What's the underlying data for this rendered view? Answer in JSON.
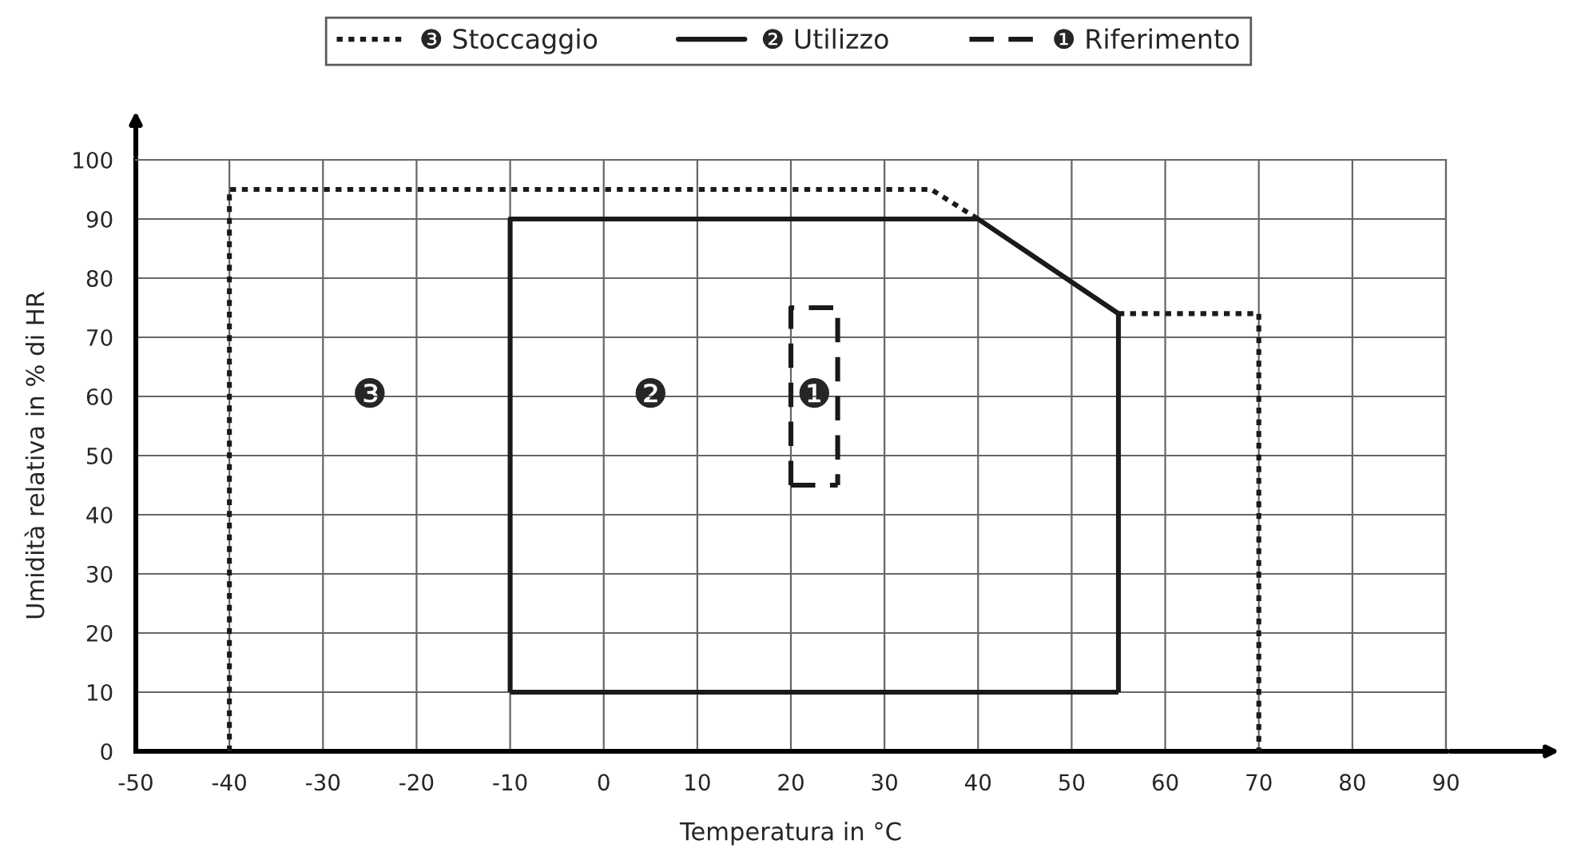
{
  "chart_data": {
    "type": "line",
    "xlabel": "Temperatura in °C",
    "ylabel": "Umidità relativa in % di HR",
    "series": [
      {
        "name": "❸ Stoccaggio",
        "color": "#1a1a1a",
        "line_style": "dotted",
        "x": [
          -40,
          -40,
          35,
          40,
          null,
          55,
          70,
          70
        ],
        "values": [
          0,
          95,
          95,
          90,
          null,
          74,
          74,
          0
        ]
      },
      {
        "name": "❷ Utilizzo",
        "color": "#1a1a1a",
        "line_style": "solid",
        "x": [
          -10,
          -10,
          40,
          55,
          55
        ],
        "values": [
          10,
          90,
          90,
          74,
          10
        ]
      },
      {
        "color": "#1a1a1a",
        "line_style": "solid",
        "x": [
          -10,
          55
        ],
        "values": [
          10,
          10
        ]
      },
      {
        "name": "❶ Riferimento",
        "color": "#1a1a1a",
        "line_style": "dashed",
        "x": [
          20,
          20,
          25,
          25
        ],
        "values": [
          45,
          75,
          75,
          45
        ]
      },
      {
        "color": "#1a1a1a",
        "line_style": "dashed",
        "x": [
          20,
          25
        ],
        "values": [
          45,
          45
        ]
      }
    ],
    "annotations": [
      "❸",
      "❷",
      "❶"
    ],
    "xlim": [
      -50,
      90
    ],
    "ylim": [
      0,
      100
    ],
    "xticks": [
      -50,
      -40,
      -30,
      -20,
      -10,
      0,
      10,
      20,
      30,
      40,
      50,
      60,
      70,
      80,
      90
    ],
    "yticks": [
      0,
      10,
      20,
      30,
      40,
      50,
      60,
      70,
      80,
      90,
      100
    ],
    "grid": true,
    "legend": "top",
    "marker": "none"
  }
}
